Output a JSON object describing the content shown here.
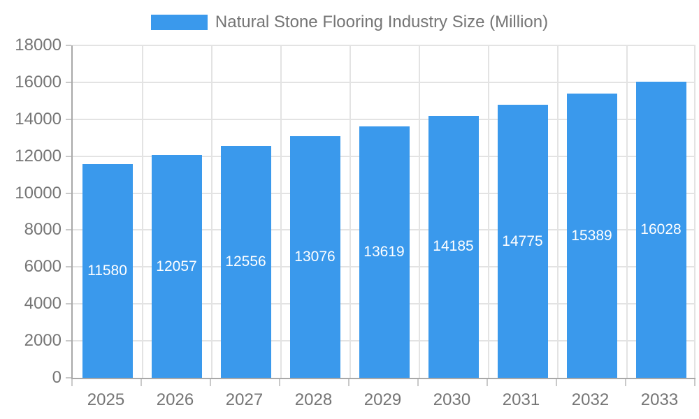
{
  "chart_data": {
    "type": "bar",
    "title": "Natural Stone Flooring Industry Size (Million)",
    "categories": [
      "2025",
      "2026",
      "2027",
      "2028",
      "2029",
      "2030",
      "2031",
      "2032",
      "2033"
    ],
    "values": [
      11580,
      12057,
      12556,
      13076,
      13619,
      14185,
      14775,
      15389,
      16028
    ],
    "y_tick_labels": [
      "0",
      "2000",
      "4000",
      "6000",
      "8000",
      "10000",
      "12000",
      "14000",
      "16000",
      "18000"
    ],
    "xlabel": "",
    "ylabel": "",
    "ylim": [
      0,
      18000
    ],
    "ytick_step": 2000,
    "grid": true,
    "legend_position": "top-center",
    "value_labels": "inside-center",
    "colors": {
      "bar": "#3A99EC",
      "value_label": "#FFFFFF",
      "axis_text": "#757575",
      "gridline": "#E3E3E3",
      "axis_line": "#A8A8A8",
      "tick": "#C9C9C9",
      "background": "#FFFFFF"
    }
  }
}
